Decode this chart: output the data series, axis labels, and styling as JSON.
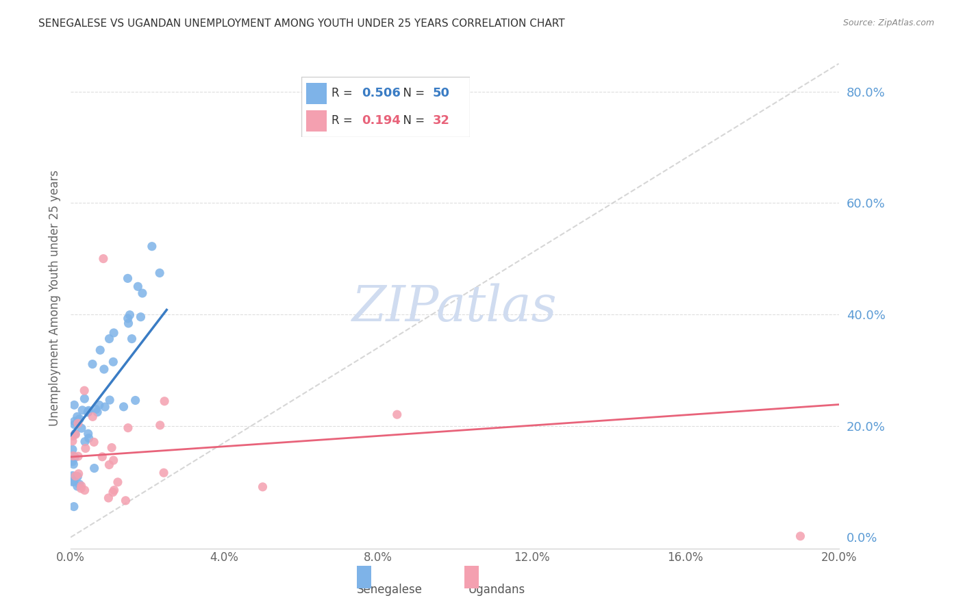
{
  "title": "SENEGALESE VS UGANDAN UNEMPLOYMENT AMONG YOUTH UNDER 25 YEARS CORRELATION CHART",
  "source": "Source: ZipAtlas.com",
  "ylabel": "Unemployment Among Youth under 25 years",
  "xlim": [
    0.0,
    0.2
  ],
  "ylim": [
    -0.02,
    0.88
  ],
  "senegalese_R": 0.506,
  "senegalese_N": 50,
  "ugandan_R": 0.194,
  "ugandan_N": 32,
  "blue_color": "#7EB3E8",
  "pink_color": "#F4A0B0",
  "blue_line_color": "#3A7CC4",
  "pink_line_color": "#E8637A",
  "right_axis_color": "#5B9BD5",
  "watermark_color": "#D0DCF0",
  "background_color": "#FFFFFF"
}
